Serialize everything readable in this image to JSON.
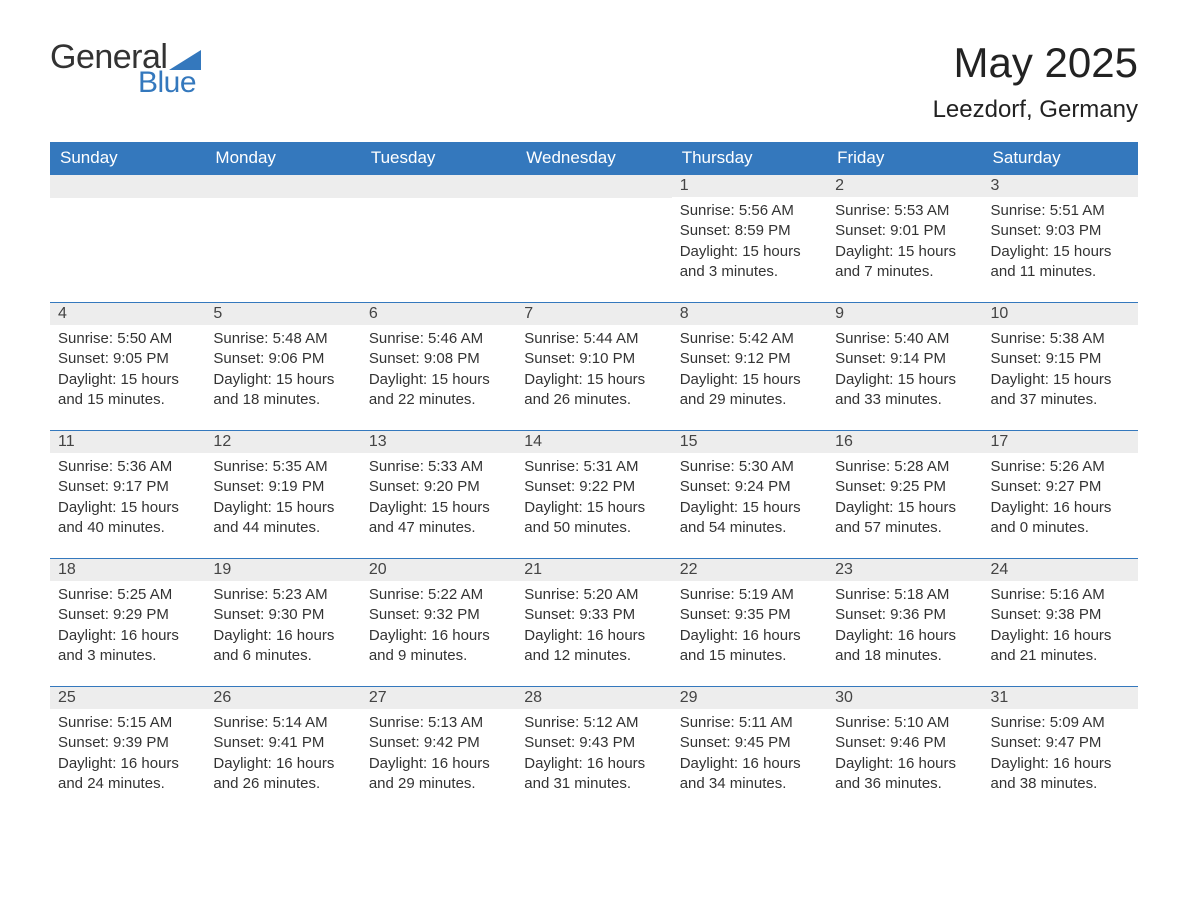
{
  "brand": {
    "word1": "General",
    "word2": "Blue",
    "logo_color": "#3478bd"
  },
  "title": "May 2025",
  "subtitle": "Leezdorf, Germany",
  "colors": {
    "header_bg": "#3478bd",
    "header_text": "#ffffff",
    "daynum_bg": "#ededed",
    "daynum_border": "#3478bd",
    "body_text": "#333333",
    "background": "#ffffff"
  },
  "typography": {
    "title_fontsize": 42,
    "subtitle_fontsize": 24,
    "header_fontsize": 17,
    "cell_fontsize": 15
  },
  "day_headers": [
    "Sunday",
    "Monday",
    "Tuesday",
    "Wednesday",
    "Thursday",
    "Friday",
    "Saturday"
  ],
  "labels": {
    "sunrise": "Sunrise:",
    "sunset": "Sunset:",
    "daylight": "Daylight:"
  },
  "weeks": [
    [
      null,
      null,
      null,
      null,
      {
        "n": "1",
        "sunrise": "5:56 AM",
        "sunset": "8:59 PM",
        "daylight": "15 hours and 3 minutes."
      },
      {
        "n": "2",
        "sunrise": "5:53 AM",
        "sunset": "9:01 PM",
        "daylight": "15 hours and 7 minutes."
      },
      {
        "n": "3",
        "sunrise": "5:51 AM",
        "sunset": "9:03 PM",
        "daylight": "15 hours and 11 minutes."
      }
    ],
    [
      {
        "n": "4",
        "sunrise": "5:50 AM",
        "sunset": "9:05 PM",
        "daylight": "15 hours and 15 minutes."
      },
      {
        "n": "5",
        "sunrise": "5:48 AM",
        "sunset": "9:06 PM",
        "daylight": "15 hours and 18 minutes."
      },
      {
        "n": "6",
        "sunrise": "5:46 AM",
        "sunset": "9:08 PM",
        "daylight": "15 hours and 22 minutes."
      },
      {
        "n": "7",
        "sunrise": "5:44 AM",
        "sunset": "9:10 PM",
        "daylight": "15 hours and 26 minutes."
      },
      {
        "n": "8",
        "sunrise": "5:42 AM",
        "sunset": "9:12 PM",
        "daylight": "15 hours and 29 minutes."
      },
      {
        "n": "9",
        "sunrise": "5:40 AM",
        "sunset": "9:14 PM",
        "daylight": "15 hours and 33 minutes."
      },
      {
        "n": "10",
        "sunrise": "5:38 AM",
        "sunset": "9:15 PM",
        "daylight": "15 hours and 37 minutes."
      }
    ],
    [
      {
        "n": "11",
        "sunrise": "5:36 AM",
        "sunset": "9:17 PM",
        "daylight": "15 hours and 40 minutes."
      },
      {
        "n": "12",
        "sunrise": "5:35 AM",
        "sunset": "9:19 PM",
        "daylight": "15 hours and 44 minutes."
      },
      {
        "n": "13",
        "sunrise": "5:33 AM",
        "sunset": "9:20 PM",
        "daylight": "15 hours and 47 minutes."
      },
      {
        "n": "14",
        "sunrise": "5:31 AM",
        "sunset": "9:22 PM",
        "daylight": "15 hours and 50 minutes."
      },
      {
        "n": "15",
        "sunrise": "5:30 AM",
        "sunset": "9:24 PM",
        "daylight": "15 hours and 54 minutes."
      },
      {
        "n": "16",
        "sunrise": "5:28 AM",
        "sunset": "9:25 PM",
        "daylight": "15 hours and 57 minutes."
      },
      {
        "n": "17",
        "sunrise": "5:26 AM",
        "sunset": "9:27 PM",
        "daylight": "16 hours and 0 minutes."
      }
    ],
    [
      {
        "n": "18",
        "sunrise": "5:25 AM",
        "sunset": "9:29 PM",
        "daylight": "16 hours and 3 minutes."
      },
      {
        "n": "19",
        "sunrise": "5:23 AM",
        "sunset": "9:30 PM",
        "daylight": "16 hours and 6 minutes."
      },
      {
        "n": "20",
        "sunrise": "5:22 AM",
        "sunset": "9:32 PM",
        "daylight": "16 hours and 9 minutes."
      },
      {
        "n": "21",
        "sunrise": "5:20 AM",
        "sunset": "9:33 PM",
        "daylight": "16 hours and 12 minutes."
      },
      {
        "n": "22",
        "sunrise": "5:19 AM",
        "sunset": "9:35 PM",
        "daylight": "16 hours and 15 minutes."
      },
      {
        "n": "23",
        "sunrise": "5:18 AM",
        "sunset": "9:36 PM",
        "daylight": "16 hours and 18 minutes."
      },
      {
        "n": "24",
        "sunrise": "5:16 AM",
        "sunset": "9:38 PM",
        "daylight": "16 hours and 21 minutes."
      }
    ],
    [
      {
        "n": "25",
        "sunrise": "5:15 AM",
        "sunset": "9:39 PM",
        "daylight": "16 hours and 24 minutes."
      },
      {
        "n": "26",
        "sunrise": "5:14 AM",
        "sunset": "9:41 PM",
        "daylight": "16 hours and 26 minutes."
      },
      {
        "n": "27",
        "sunrise": "5:13 AM",
        "sunset": "9:42 PM",
        "daylight": "16 hours and 29 minutes."
      },
      {
        "n": "28",
        "sunrise": "5:12 AM",
        "sunset": "9:43 PM",
        "daylight": "16 hours and 31 minutes."
      },
      {
        "n": "29",
        "sunrise": "5:11 AM",
        "sunset": "9:45 PM",
        "daylight": "16 hours and 34 minutes."
      },
      {
        "n": "30",
        "sunrise": "5:10 AM",
        "sunset": "9:46 PM",
        "daylight": "16 hours and 36 minutes."
      },
      {
        "n": "31",
        "sunrise": "5:09 AM",
        "sunset": "9:47 PM",
        "daylight": "16 hours and 38 minutes."
      }
    ]
  ]
}
